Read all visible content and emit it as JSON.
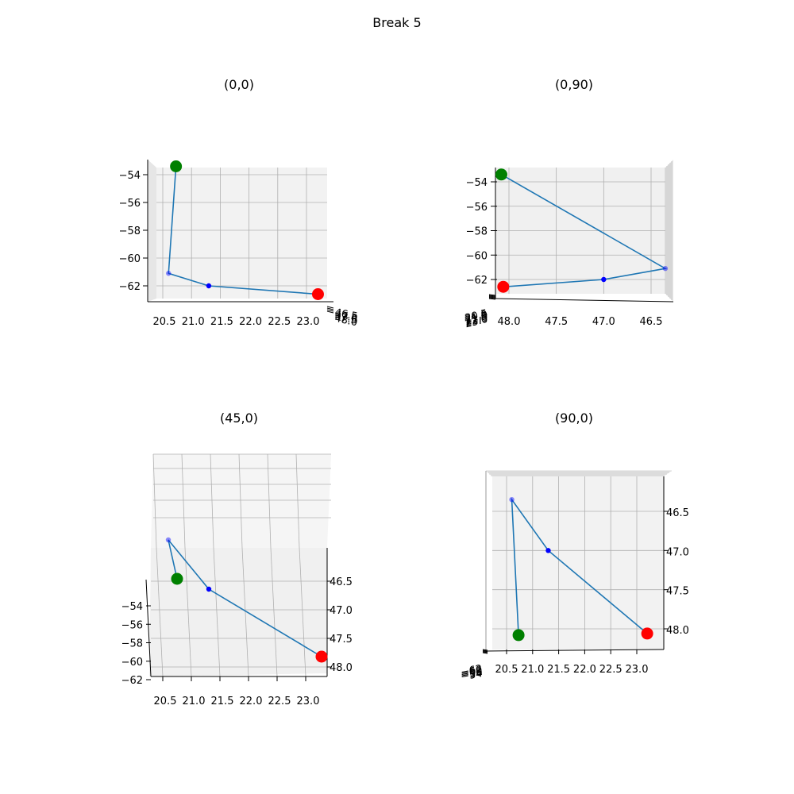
{
  "figure": {
    "title": "Break 5"
  },
  "colors": {
    "line": "#1f77b4",
    "start": "#008000",
    "end": "#ff0000",
    "mid": "#0000ff",
    "pane": "#f2f2f2",
    "grid": "#b0b0b0"
  },
  "chart_data": [
    {
      "type": "line3d",
      "title": "(0,0)",
      "view": "elev 0, azim 0",
      "x_tick_labels": [
        "20.5",
        "21.0",
        "21.5",
        "22.0",
        "22.5",
        "23.0"
      ],
      "z_tick_labels": [
        "−54",
        "−56",
        "−58",
        "−60",
        "−62"
      ],
      "y_tick_labels_overlapped": [
        "46.5",
        "47.0",
        "47.5",
        "48.0"
      ],
      "points": [
        {
          "x": 20.73,
          "y": 48.08,
          "z": -53.4,
          "marker": "start"
        },
        {
          "x": 20.6,
          "y": 46.35,
          "z": -61.1,
          "marker": "mid"
        },
        {
          "x": 21.3,
          "y": 47.0,
          "z": -62.0,
          "marker": "mid"
        },
        {
          "x": 23.2,
          "y": 48.06,
          "z": -62.6,
          "marker": "end"
        }
      ]
    },
    {
      "type": "line3d",
      "title": "(0,90)",
      "view": "elev 0, azim 90",
      "y_tick_labels": [
        "48.0",
        "47.5",
        "47.0",
        "46.5"
      ],
      "z_tick_labels": [
        "−54",
        "−56",
        "−58",
        "−60",
        "−62"
      ],
      "x_tick_labels_overlapped": [
        "20.5",
        "21.0",
        "21.5",
        "22.0",
        "22.5",
        "23.0"
      ],
      "points": [
        {
          "x": 20.73,
          "y": 48.08,
          "z": -53.4,
          "marker": "start"
        },
        {
          "x": 20.6,
          "y": 46.35,
          "z": -61.1,
          "marker": "mid"
        },
        {
          "x": 21.3,
          "y": 47.0,
          "z": -62.0,
          "marker": "mid"
        },
        {
          "x": 23.2,
          "y": 48.06,
          "z": -62.6,
          "marker": "end"
        }
      ]
    },
    {
      "type": "line3d",
      "title": "(45,0)",
      "view": "elev 45, azim 0",
      "x_tick_labels": [
        "20.5",
        "21.0",
        "21.5",
        "22.0",
        "22.5",
        "23.0"
      ],
      "y_tick_labels": [
        "46.5",
        "47.0",
        "47.5",
        "48.0"
      ],
      "z_tick_labels": [
        "−54",
        "−56",
        "−58",
        "−60",
        "−62"
      ],
      "points": [
        {
          "x": 20.73,
          "y": 48.08,
          "z": -53.4,
          "marker": "start"
        },
        {
          "x": 20.6,
          "y": 46.35,
          "z": -61.1,
          "marker": "mid"
        },
        {
          "x": 21.3,
          "y": 47.0,
          "z": -62.0,
          "marker": "mid"
        },
        {
          "x": 23.2,
          "y": 48.06,
          "z": -62.6,
          "marker": "end"
        }
      ]
    },
    {
      "type": "line3d",
      "title": "(90,0)",
      "view": "elev 90, azim 0",
      "x_tick_labels": [
        "20.5",
        "21.0",
        "21.5",
        "22.0",
        "22.5",
        "23.0"
      ],
      "y_tick_labels": [
        "46.5",
        "47.0",
        "47.5",
        "48.0"
      ],
      "z_tick_labels_overlapped": [
        "−54",
        "−56",
        "−58",
        "−60",
        "−62"
      ],
      "points": [
        {
          "x": 20.73,
          "y": 48.08,
          "z": -53.4,
          "marker": "start"
        },
        {
          "x": 20.6,
          "y": 46.35,
          "z": -61.1,
          "marker": "mid"
        },
        {
          "x": 21.3,
          "y": 47.0,
          "z": -62.0,
          "marker": "mid"
        },
        {
          "x": 23.2,
          "y": 48.06,
          "z": -62.6,
          "marker": "end"
        }
      ]
    }
  ]
}
